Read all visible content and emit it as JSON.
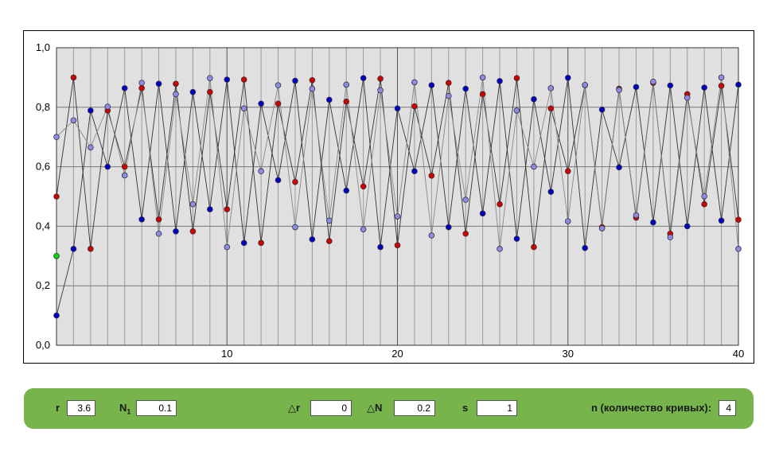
{
  "chart_data": {
    "type": "scatter",
    "x_ticks": [
      "10",
      "20",
      "30",
      "40"
    ],
    "y_ticks": [
      "0,0",
      "0,2",
      "0,4",
      "0,6",
      "0,8",
      "1,0"
    ],
    "xlim": [
      0,
      40
    ],
    "ylim": [
      0,
      1
    ],
    "grid": true,
    "series": [
      {
        "color": "#d40000",
        "line_color": "#333333",
        "values": [
          0.5,
          0.9,
          0.324,
          0.789,
          0.6,
          0.864,
          0.423,
          0.879,
          0.383,
          0.851,
          0.457,
          0.893,
          0.344,
          0.812,
          0.549,
          0.891,
          0.35,
          0.819,
          0.534,
          0.896,
          0.336,
          0.803,
          0.57,
          0.882,
          0.375,
          0.844,
          0.474,
          0.898,
          0.33,
          0.796,
          0.585,
          0.874,
          0.397,
          0.862,
          0.429,
          0.882,
          0.375,
          0.844,
          0.474,
          0.872,
          0.422
        ]
      },
      {
        "color": "#0000cc",
        "line_color": "#333333",
        "values": [
          0.1,
          0.324,
          0.789,
          0.6,
          0.864,
          0.423,
          0.879,
          0.383,
          0.851,
          0.457,
          0.893,
          0.344,
          0.812,
          0.555,
          0.889,
          0.356,
          0.825,
          0.52,
          0.898,
          0.33,
          0.796,
          0.585,
          0.874,
          0.397,
          0.862,
          0.443,
          0.888,
          0.358,
          0.827,
          0.516,
          0.899,
          0.327,
          0.792,
          0.598,
          0.868,
          0.413,
          0.873,
          0.4,
          0.866,
          0.419,
          0.876
        ]
      },
      {
        "color": "#8c8ce8",
        "line_color": "#888888",
        "values": [
          0.7,
          0.756,
          0.665,
          0.802,
          0.571,
          0.882,
          0.375,
          0.844,
          0.474,
          0.898,
          0.33,
          0.796,
          0.585,
          0.874,
          0.397,
          0.862,
          0.419,
          0.876,
          0.39,
          0.857,
          0.433,
          0.884,
          0.369,
          0.838,
          0.489,
          0.9,
          0.324,
          0.789,
          0.6,
          0.864,
          0.417,
          0.875,
          0.393,
          0.858,
          0.437,
          0.886,
          0.363,
          0.832,
          0.501,
          0.9,
          0.324
        ]
      },
      {
        "color": "#00dd00",
        "line_color": "#888888",
        "values": [
          0.3
        ]
      }
    ]
  },
  "controls": {
    "r_label": "r",
    "r_value": "3.6",
    "n1_label": "N",
    "n1_sub": "1",
    "n1_value": "0.1",
    "dr_label": "△r",
    "dr_value": "0",
    "dn_label": "△N",
    "dn_value": "0.2",
    "s_label": "s",
    "s_value": "1",
    "n_label": "n (количество кривых):",
    "n_value": "4"
  }
}
